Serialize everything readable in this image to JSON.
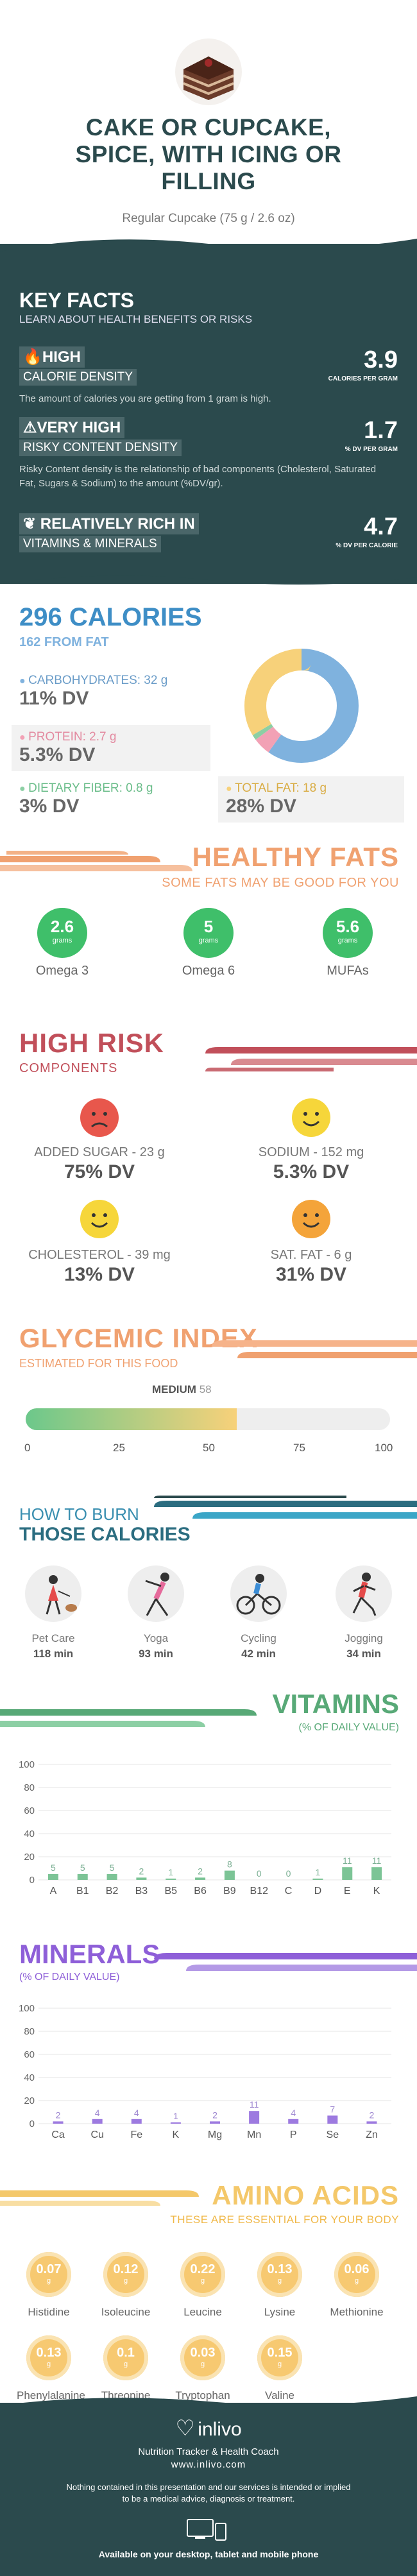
{
  "header": {
    "title_lines": [
      "CAKE OR CUPCAKE,",
      "SPICE, WITH ICING OR",
      "FILLING"
    ],
    "serving": "Regular Cupcake (75 g / 2.6 oz)"
  },
  "key_facts": {
    "title": "KEY FACTS",
    "subtitle": "LEARN ABOUT HEALTH BENEFITS OR RISKS",
    "items": [
      {
        "tag1": "HIGH",
        "tag2": "CALORIE DENSITY",
        "desc": "The amount of calories you are getting from 1 gram is high.",
        "value": "3.9",
        "unit": "CALORIES PER GRAM",
        "icon": "flame-icon"
      },
      {
        "tag1": "VERY HIGH",
        "tag2": "RISKY CONTENT DENSITY",
        "desc": "Risky Content density is the relationship of bad components (Cholesterol, Saturated Fat, Sugars & Sodium) to the amount (%DV/gr).",
        "value": "1.7",
        "unit": "% DV PER GRAM",
        "icon": "warning-icon"
      },
      {
        "tag1": "RELATIVELY RICH  IN",
        "tag2": "VITAMINS & MINERALS",
        "desc": "",
        "value": "4.7",
        "unit": "% DV PER CALORIE",
        "icon": "leaf-icon"
      }
    ]
  },
  "calories": {
    "title": "296 CALORIES",
    "from_fat": "162 FROM FAT",
    "macros": [
      {
        "label": "CARBOHYDRATES: 32 g",
        "dv": "11% DV",
        "color": "#7fb2de"
      },
      {
        "label": "PROTEIN: 2.7 g",
        "dv": "5.3% DV",
        "color": "#f2a1b5"
      },
      {
        "label": "DIETARY FIBER: 0.8 g",
        "dv": "3% DV",
        "color": "#8ccfa4"
      },
      {
        "label": "TOTAL FAT: 18 g",
        "dv": "28% DV",
        "color": "#f7d17a"
      }
    ],
    "donut": [
      {
        "name": "carbs",
        "value": 32,
        "color": "#7fb2de"
      },
      {
        "name": "protein",
        "value": 2.7,
        "color": "#f2a1b5"
      },
      {
        "name": "fiber",
        "value": 0.8,
        "color": "#8ccfa4"
      },
      {
        "name": "fat",
        "value": 18,
        "color": "#f7d17a"
      }
    ]
  },
  "healthy_fats": {
    "title": "HEALTHY FATS",
    "subtitle": "SOME FATS MAY BE GOOD FOR YOU",
    "unit": "grams",
    "items": [
      {
        "value": "2.6",
        "label": "Omega 3"
      },
      {
        "value": "5",
        "label": "Omega 6"
      },
      {
        "value": "5.6",
        "label": "MUFAs"
      }
    ]
  },
  "high_risk": {
    "title": "HIGH RISK",
    "subtitle": "COMPONENTS",
    "items": [
      {
        "label": "ADDED SUGAR - 23 g",
        "dv": "75% DV",
        "face": "sad",
        "color": "#e8574c"
      },
      {
        "label": "SODIUM - 152 mg",
        "dv": "5.3% DV",
        "face": "happy",
        "color": "#f6d63a"
      },
      {
        "label": "CHOLESTEROL - 39 mg",
        "dv": "13% DV",
        "face": "happy",
        "color": "#f6d63a"
      },
      {
        "label": "SAT. FAT - 6 g",
        "dv": "31% DV",
        "face": "smile",
        "color": "#f4a43a"
      }
    ]
  },
  "glycemic": {
    "title": "GLYCEMIC INDEX",
    "subtitle": "ESTIMATED FOR THIS FOOD",
    "level": "MEDIUM",
    "value": "58",
    "value_num": 58,
    "ticks": [
      "0",
      "25",
      "50",
      "75",
      "100"
    ]
  },
  "burn": {
    "title1": "HOW TO BURN",
    "title2": "THOSE CALORIES",
    "items": [
      {
        "label": "Pet Care",
        "time": "118 min"
      },
      {
        "label": "Yoga",
        "time": "93 min"
      },
      {
        "label": "Cycling",
        "time": "42 min"
      },
      {
        "label": "Jogging",
        "time": "34 min"
      }
    ]
  },
  "vitamins": {
    "title": "VITAMINS",
    "subtitle": "(% OF DAILY VALUE)"
  },
  "minerals": {
    "title": "MINERALS",
    "subtitle": "(% OF DAILY VALUE)"
  },
  "amino": {
    "title": "AMINO ACIDS",
    "subtitle": "THESE ARE ESSENTIAL FOR YOUR BODY",
    "unit": "g",
    "items": [
      {
        "value": "0.07",
        "label": "Histidine"
      },
      {
        "value": "0.12",
        "label": "Isoleucine"
      },
      {
        "value": "0.22",
        "label": "Leucine"
      },
      {
        "value": "0.13",
        "label": "Lysine"
      },
      {
        "value": "0.06",
        "label": "Methionine"
      },
      {
        "value": "0.13",
        "label": "Phenylalanine"
      },
      {
        "value": "0.1",
        "label": "Threonine"
      },
      {
        "value": "0.03",
        "label": "Tryptophan"
      },
      {
        "value": "0.15",
        "label": "Valine"
      }
    ]
  },
  "footer": {
    "brand": "inlivo",
    "tagline": "Nutrition Tracker & Health Coach",
    "url": "www.inlivo.com",
    "disclaimer1": "Nothing contained in this presentation and our services is intended or implied",
    "disclaimer2": "to be a medical advice, diagnosis or treatment.",
    "availability": "Available on your desktop, tablet and mobile phone"
  },
  "chart_data": [
    {
      "type": "bar",
      "title": "VITAMINS",
      "categories": [
        "A",
        "B1",
        "B2",
        "B3",
        "B5",
        "B6",
        "B9",
        "B12",
        "C",
        "D",
        "E",
        "K"
      ],
      "values": [
        5,
        5,
        5,
        2,
        1,
        2,
        8,
        0,
        0,
        1,
        11,
        11
      ],
      "ylim": [
        0,
        100
      ],
      "ticks": [
        0,
        20,
        40,
        60,
        80,
        100
      ]
    },
    {
      "type": "bar",
      "title": "MINERALS",
      "categories": [
        "Ca",
        "Cu",
        "Fe",
        "K",
        "Mg",
        "Mn",
        "P",
        "Se",
        "Zn"
      ],
      "values": [
        2,
        4,
        4,
        1,
        2,
        11,
        4,
        7,
        2
      ],
      "ylim": [
        0,
        100
      ],
      "ticks": [
        0,
        20,
        40,
        60,
        80,
        100
      ]
    }
  ]
}
